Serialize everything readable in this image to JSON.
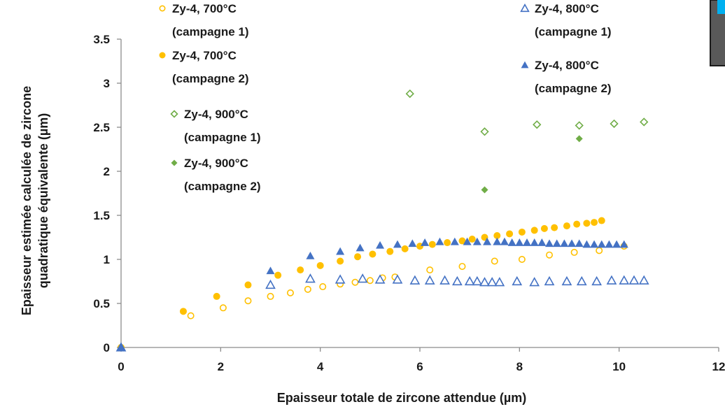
{
  "chart_data": {
    "type": "scatter",
    "title": "",
    "xlabel": "Epaisseur totale de zircone attendue (µm)",
    "ylabel_line1": "Epaisseur estimée calculée de zircone",
    "ylabel_line2": "quadratique équivalente (µm)",
    "xlim": [
      0,
      12
    ],
    "ylim": [
      0,
      3.5
    ],
    "xticks": [
      0,
      2,
      4,
      6,
      8,
      10,
      12
    ],
    "yticks": [
      0,
      0.5,
      1,
      1.5,
      2,
      2.5,
      3,
      3.5
    ],
    "xtick_labels": [
      "0",
      "2",
      "4",
      "6",
      "8",
      "10",
      "12"
    ],
    "ytick_labels": [
      "0",
      "0.5",
      "1",
      "1.5",
      "2",
      "2.5",
      "3",
      "3.5"
    ],
    "grid": false,
    "colors": {
      "orange": "#ffc000",
      "blue": "#4472c4",
      "green": "#70ad47"
    },
    "series": [
      {
        "name_line1": "Zy-4, 700°C",
        "name_line2": "(campagne 1)",
        "marker": "circle",
        "filled": false,
        "color": "#ffc000",
        "points": [
          [
            0,
            0
          ],
          [
            1.4,
            0.36
          ],
          [
            2.05,
            0.45
          ],
          [
            2.55,
            0.53
          ],
          [
            3,
            0.58
          ],
          [
            3.4,
            0.62
          ],
          [
            3.75,
            0.66
          ],
          [
            4.05,
            0.69
          ],
          [
            4.4,
            0.72
          ],
          [
            4.7,
            0.74
          ],
          [
            5.0,
            0.76
          ],
          [
            5.25,
            0.79
          ],
          [
            5.5,
            0.8
          ],
          [
            6.2,
            0.88
          ],
          [
            6.85,
            0.92
          ],
          [
            7.5,
            0.98
          ],
          [
            8.05,
            1.0
          ],
          [
            8.6,
            1.05
          ],
          [
            9.1,
            1.08
          ],
          [
            9.6,
            1.1
          ],
          [
            10.1,
            1.15
          ]
        ]
      },
      {
        "name_line1": "Zy-4, 700°C",
        "name_line2": "(campagne 2)",
        "marker": "circle",
        "filled": true,
        "color": "#ffc000",
        "points": [
          [
            0,
            0
          ],
          [
            1.25,
            0.41
          ],
          [
            1.92,
            0.58
          ],
          [
            2.55,
            0.71
          ],
          [
            3.15,
            0.82
          ],
          [
            3.6,
            0.88
          ],
          [
            4.0,
            0.93
          ],
          [
            4.4,
            0.98
          ],
          [
            4.75,
            1.03
          ],
          [
            5.05,
            1.06
          ],
          [
            5.4,
            1.09
          ],
          [
            5.7,
            1.12
          ],
          [
            6.0,
            1.15
          ],
          [
            6.25,
            1.17
          ],
          [
            6.55,
            1.19
          ],
          [
            6.85,
            1.21
          ],
          [
            7.05,
            1.23
          ],
          [
            7.3,
            1.25
          ],
          [
            7.55,
            1.27
          ],
          [
            7.8,
            1.29
          ],
          [
            8.05,
            1.31
          ],
          [
            8.3,
            1.33
          ],
          [
            8.5,
            1.35
          ],
          [
            8.7,
            1.36
          ],
          [
            8.95,
            1.38
          ],
          [
            9.15,
            1.4
          ],
          [
            9.35,
            1.41
          ],
          [
            9.5,
            1.42
          ],
          [
            9.65,
            1.44
          ]
        ]
      },
      {
        "name_line1": "Zy-4, 800°C",
        "name_line2": "(campagne 1)",
        "marker": "triangle",
        "filled": false,
        "color": "#4472c4",
        "points": [
          [
            0,
            0
          ],
          [
            3.0,
            0.71
          ],
          [
            3.8,
            0.78
          ],
          [
            4.4,
            0.77
          ],
          [
            4.85,
            0.78
          ],
          [
            5.2,
            0.77
          ],
          [
            5.55,
            0.77
          ],
          [
            5.9,
            0.76
          ],
          [
            6.2,
            0.76
          ],
          [
            6.5,
            0.76
          ],
          [
            6.75,
            0.75
          ],
          [
            7.0,
            0.75
          ],
          [
            7.15,
            0.75
          ],
          [
            7.3,
            0.74
          ],
          [
            7.45,
            0.74
          ],
          [
            7.6,
            0.74
          ],
          [
            7.95,
            0.75
          ],
          [
            8.3,
            0.74
          ],
          [
            8.6,
            0.75
          ],
          [
            8.95,
            0.75
          ],
          [
            9.25,
            0.75
          ],
          [
            9.55,
            0.75
          ],
          [
            9.85,
            0.76
          ],
          [
            10.1,
            0.76
          ],
          [
            10.3,
            0.76
          ],
          [
            10.5,
            0.76
          ]
        ]
      },
      {
        "name_line1": "Zy-4, 800°C",
        "name_line2": "(campagne 2)",
        "marker": "triangle",
        "filled": true,
        "color": "#4472c4",
        "points": [
          [
            0,
            0
          ],
          [
            3.0,
            0.87
          ],
          [
            3.8,
            1.04
          ],
          [
            4.4,
            1.09
          ],
          [
            4.8,
            1.13
          ],
          [
            5.2,
            1.16
          ],
          [
            5.55,
            1.17
          ],
          [
            5.85,
            1.18
          ],
          [
            6.1,
            1.19
          ],
          [
            6.4,
            1.2
          ],
          [
            6.7,
            1.2
          ],
          [
            6.95,
            1.2
          ],
          [
            7.15,
            1.2
          ],
          [
            7.35,
            1.2
          ],
          [
            7.55,
            1.2
          ],
          [
            7.7,
            1.2
          ],
          [
            7.85,
            1.19
          ],
          [
            8.0,
            1.19
          ],
          [
            8.15,
            1.19
          ],
          [
            8.3,
            1.19
          ],
          [
            8.45,
            1.19
          ],
          [
            8.6,
            1.18
          ],
          [
            8.75,
            1.18
          ],
          [
            8.9,
            1.18
          ],
          [
            9.05,
            1.18
          ],
          [
            9.2,
            1.18
          ],
          [
            9.35,
            1.17
          ],
          [
            9.5,
            1.17
          ],
          [
            9.65,
            1.17
          ],
          [
            9.8,
            1.17
          ],
          [
            9.95,
            1.17
          ],
          [
            10.1,
            1.17
          ]
        ]
      },
      {
        "name_line1": "Zy-4, 900°C",
        "name_line2": "(campagne 1)",
        "marker": "diamond",
        "filled": false,
        "color": "#70ad47",
        "points": [
          [
            5.8,
            2.88
          ],
          [
            7.3,
            2.45
          ],
          [
            8.35,
            2.53
          ],
          [
            9.2,
            2.52
          ],
          [
            9.9,
            2.54
          ],
          [
            10.5,
            2.56
          ]
        ]
      },
      {
        "name_line1": "Zy-4, 900°C",
        "name_line2": "(campagne 2)",
        "marker": "diamond",
        "filled": true,
        "color": "#70ad47",
        "points": [
          [
            7.3,
            1.79
          ],
          [
            9.2,
            2.37
          ]
        ]
      }
    ]
  }
}
